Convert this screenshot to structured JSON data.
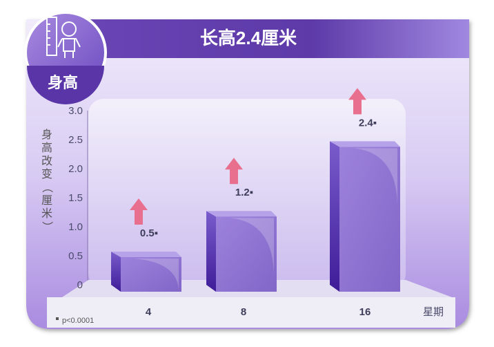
{
  "header": {
    "title": "长高2.4厘米",
    "badge_label": "身高",
    "badge_icon": "child-height-ruler-icon"
  },
  "footnote": "p<0.0001",
  "colors": {
    "header": "#6a48b8",
    "bar": "#8a6ed0",
    "bar_side": "#4a25a0",
    "arrow": "#e8708e",
    "panel": "#c7b6ec"
  },
  "chart_data": {
    "type": "bar",
    "title": "长高2.4厘米",
    "xlabel": "星期",
    "ylabel": "身高改变（厘米）",
    "categories": [
      "4",
      "8",
      "16"
    ],
    "values": [
      0.5,
      1.2,
      2.4
    ],
    "data_labels": [
      "0.5▪",
      "1.2▪",
      "2.4▪"
    ],
    "ylim": [
      0,
      3.0
    ],
    "yticks": [
      "0",
      "0.5",
      "1.0",
      "1.5",
      "2.0",
      "2.5",
      "3.0"
    ],
    "annotations": [
      "p<0.0001"
    ],
    "grid": false,
    "style": "3d"
  }
}
